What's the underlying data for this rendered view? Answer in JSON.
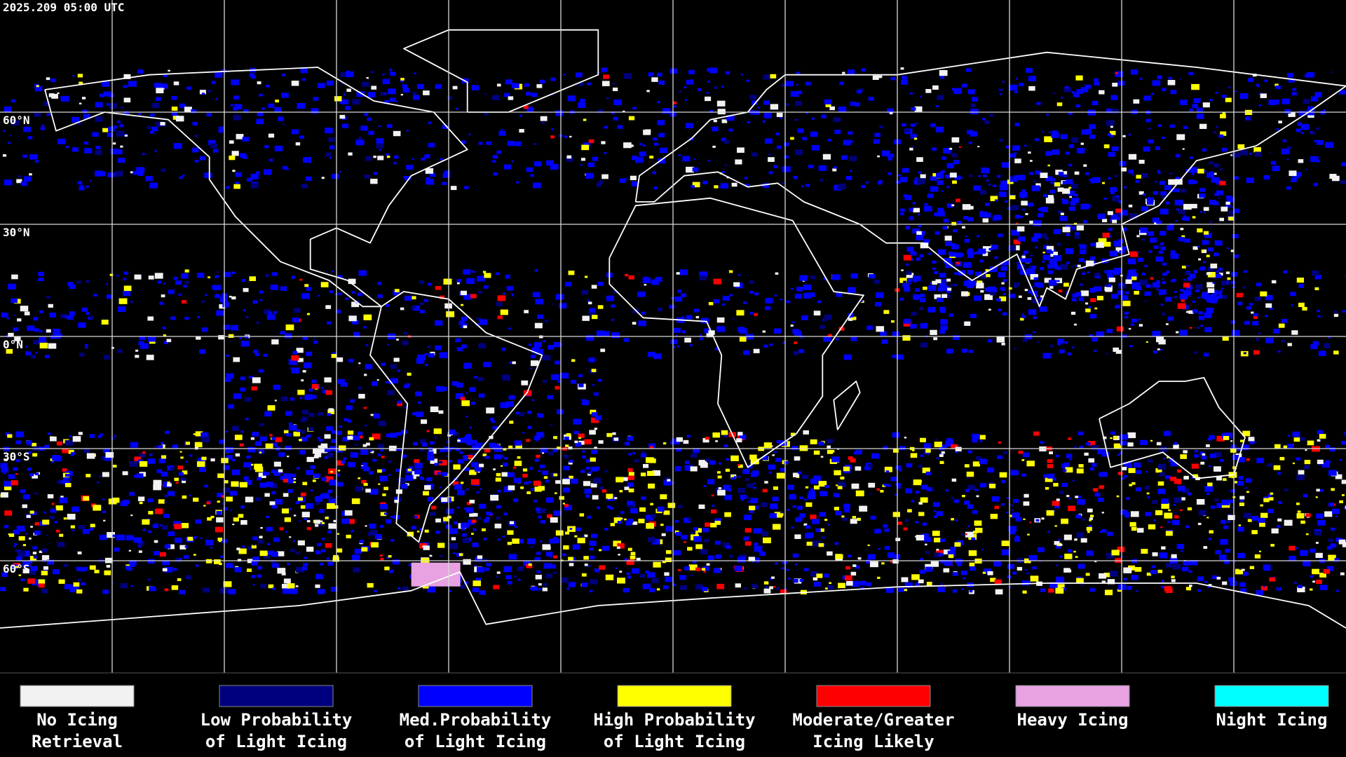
{
  "header": {
    "timestamp": "2025.209 05:00 UTC"
  },
  "map": {
    "lat_labels": [
      "60°N",
      "30°N",
      "0°N",
      "30°S",
      "60°S"
    ]
  },
  "legend": {
    "items": [
      {
        "color": "#f2f2f2",
        "lines": [
          "No Icing",
          "Retrieval"
        ]
      },
      {
        "color": "#00007f",
        "lines": [
          "Low Probability",
          "of Light Icing"
        ]
      },
      {
        "color": "#0000ff",
        "lines": [
          "Med.Probability",
          "of Light Icing"
        ]
      },
      {
        "color": "#ffff00",
        "lines": [
          "High Probability",
          "of Light Icing"
        ]
      },
      {
        "color": "#ff0000",
        "lines": [
          "Moderate/Greater",
          "Icing Likely"
        ]
      },
      {
        "color": "#e8a2e2",
        "lines": [
          "Heavy Icing"
        ]
      },
      {
        "color": "#00ffff",
        "lines": [
          "Night Icing"
        ]
      }
    ]
  }
}
